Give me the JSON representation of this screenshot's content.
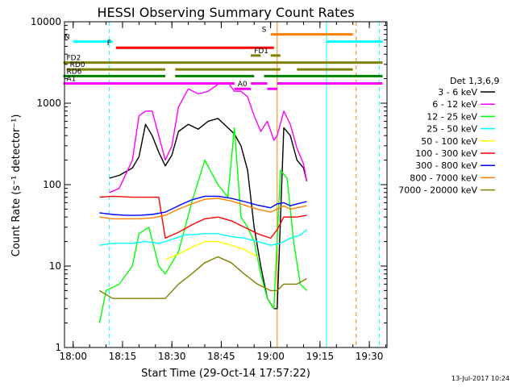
{
  "chart_data": {
    "type": "line",
    "title": "HESSI Observing Summary Count Rates",
    "xlabel": "Start Time (29-Oct-14 17:57:22)",
    "ylabel": "Count Rate (s⁻¹ detector⁻¹)",
    "y_scale": "log",
    "ylim": [
      1,
      10000
    ],
    "xlim_minutes_after_start": [
      0,
      98
    ],
    "x_ticks": [
      "18:00",
      "18:15",
      "18:30",
      "18:45",
      "19:00",
      "19:15",
      "19:30"
    ],
    "y_ticks": [
      "1",
      "10",
      "100",
      "1000",
      "10000"
    ],
    "footer": "13-Jul-2017 10:24",
    "legend": {
      "title": "Det 1,3,6,9",
      "placement": "right",
      "entries": [
        {
          "label": "3 - 6 keV",
          "color": "#000000"
        },
        {
          "label": "6 - 12 keV",
          "color": "#ff00ff"
        },
        {
          "label": "12 - 25 keV",
          "color": "#00ff00"
        },
        {
          "label": "25 - 50 keV",
          "color": "#00ffff"
        },
        {
          "label": "50 - 100 keV",
          "color": "#ffff00"
        },
        {
          "label": "100 - 300 keV",
          "color": "#ff0000"
        },
        {
          "label": "300 - 800 keV",
          "color": "#0000ff"
        },
        {
          "label": "800 - 7000 keV",
          "color": "#ff8000"
        },
        {
          "label": "7000 - 20000 keV",
          "color": "#808000"
        }
      ]
    },
    "flag_bars": [
      {
        "label": "N",
        "color": "#00ffff",
        "y": 5700,
        "segments": [
          [
            "18:00",
            "18:12"
          ],
          [
            "19:17",
            "19:34"
          ]
        ]
      },
      {
        "label": "F",
        "color": "#ff0000",
        "y": 4800,
        "segments": [
          [
            "18:13",
            "19:01"
          ]
        ]
      },
      {
        "label": "S",
        "color": "#ff8000",
        "y": 7000,
        "segments": [
          [
            "19:00",
            "19:25"
          ]
        ]
      },
      {
        "label": "FD1",
        "color": "#808000",
        "y": 3850,
        "segments": [
          [
            "18:54",
            "18:57"
          ],
          [
            "19:00",
            "19:03"
          ]
        ]
      },
      {
        "label": "FD2",
        "color": "#808000",
        "y": 3150,
        "segments": [
          [
            "17:57",
            "19:34"
          ]
        ]
      },
      {
        "label": "RD0",
        "color": "#808000",
        "y": 2600,
        "segments": [
          [
            "17:58",
            "18:28"
          ],
          [
            "18:31",
            "19:03"
          ],
          [
            "19:08",
            "19:25"
          ]
        ]
      },
      {
        "label": "RD6",
        "color": "#008000",
        "y": 2150,
        "segments": [
          [
            "17:57",
            "18:28"
          ],
          [
            "18:31",
            "18:55"
          ],
          [
            "18:58",
            "19:25"
          ],
          [
            "19:25",
            "19:34"
          ]
        ]
      },
      {
        "label": "A1",
        "color": "#ff00ff",
        "y": 1750,
        "segments": [
          [
            "17:57",
            "18:49"
          ],
          [
            "18:54",
            "18:59"
          ],
          [
            "19:02",
            "19:34"
          ]
        ]
      },
      {
        "label": "A0",
        "color": "#ff00ff",
        "y": 1500,
        "segments": [
          [
            "18:49",
            "18:54"
          ],
          [
            "18:59",
            "19:02"
          ]
        ]
      }
    ],
    "vertical_lines": [
      {
        "time": "17:57:22",
        "color": "#00ffff",
        "style": "solid"
      },
      {
        "time": "18:11",
        "color": "#00ffff",
        "style": "dashed"
      },
      {
        "time": "19:17",
        "color": "#00ffff",
        "style": "solid"
      },
      {
        "time": "19:33",
        "color": "#00ffff",
        "style": "dashed"
      },
      {
        "time": "19:02",
        "color": "#ff8000",
        "style": "solid"
      },
      {
        "time": "19:26",
        "color": "#ff8000",
        "style": "dashed"
      }
    ],
    "series": [
      {
        "name": "3 - 6 keV",
        "color": "#000000",
        "x": [
          "18:11",
          "18:14",
          "18:18",
          "18:20",
          "18:22",
          "18:24",
          "18:26",
          "18:28",
          "18:30",
          "18:32",
          "18:35",
          "18:38",
          "18:41",
          "18:44",
          "18:47",
          "18:49",
          "18:51",
          "18:53",
          "18:55",
          "18:57",
          "18:59",
          "19:01",
          "19:02",
          "19:04",
          "19:06",
          "19:08",
          "19:10",
          "19:11"
        ],
        "y": [
          120,
          130,
          160,
          220,
          550,
          400,
          250,
          170,
          230,
          450,
          550,
          480,
          600,
          650,
          500,
          420,
          300,
          150,
          30,
          10,
          4,
          3,
          3,
          500,
          400,
          200,
          160,
          110
        ]
      },
      {
        "name": "6 - 12 keV",
        "color": "#ff00ff",
        "x": [
          "18:11",
          "18:14",
          "18:18",
          "18:20",
          "18:22",
          "18:24",
          "18:26",
          "18:28",
          "18:30",
          "18:32",
          "18:35",
          "18:38",
          "18:41",
          "18:44",
          "18:47",
          "18:49",
          "18:51",
          "18:53",
          "18:55",
          "18:57",
          "18:59",
          "19:01",
          "19:02",
          "19:04",
          "19:06",
          "19:08",
          "19:10",
          "19:11"
        ],
        "y": [
          80,
          90,
          200,
          700,
          800,
          800,
          400,
          200,
          300,
          900,
          1500,
          1300,
          1400,
          1700,
          1800,
          1400,
          1400,
          1200,
          700,
          450,
          600,
          350,
          400,
          800,
          550,
          280,
          180,
          110
        ]
      },
      {
        "name": "12 - 25 keV",
        "color": "#00ff00",
        "x": [
          "18:08",
          "18:10",
          "18:14",
          "18:18",
          "18:20",
          "18:23",
          "18:26",
          "18:28",
          "18:32",
          "18:36",
          "18:40",
          "18:44",
          "18:47",
          "18:49",
          "18:51",
          "18:53",
          "18:55",
          "18:57",
          "18:59",
          "19:01",
          "19:03",
          "19:05",
          "19:07",
          "19:09",
          "19:11"
        ],
        "y": [
          2,
          5,
          6,
          10,
          25,
          30,
          10,
          8,
          15,
          60,
          200,
          100,
          70,
          500,
          40,
          30,
          20,
          8,
          4,
          3,
          150,
          120,
          20,
          6,
          5
        ]
      },
      {
        "name": "25 - 50 keV",
        "color": "#00ffff",
        "x": [
          "18:08",
          "18:12",
          "18:18",
          "18:22",
          "18:26",
          "18:28",
          "18:34",
          "18:40",
          "18:44",
          "18:48",
          "18:52",
          "18:56",
          "19:00",
          "19:03",
          "19:06",
          "19:09",
          "19:11"
        ],
        "y": [
          18,
          19,
          19,
          20,
          19,
          20,
          24,
          25,
          25,
          23,
          22,
          20,
          18,
          19,
          22,
          24,
          28
        ]
      },
      {
        "name": "50 - 100 keV",
        "color": "#ffff00",
        "x": [
          "18:28",
          "18:32",
          "18:36",
          "18:40",
          "18:44",
          "18:48",
          "18:52",
          "18:56"
        ],
        "y": [
          12,
          14,
          17,
          20,
          20,
          18,
          16,
          13
        ]
      },
      {
        "name": "100 - 300 keV",
        "color": "#ff0000",
        "x": [
          "18:08",
          "18:12",
          "18:18",
          "18:22",
          "18:26",
          "18:28",
          "18:32",
          "18:36",
          "18:40",
          "18:44",
          "18:48",
          "18:52",
          "18:56",
          "19:00",
          "19:02",
          "19:04",
          "19:08",
          "19:11"
        ],
        "y": [
          70,
          72,
          70,
          70,
          70,
          22,
          26,
          32,
          38,
          40,
          36,
          30,
          25,
          22,
          28,
          40,
          40,
          42
        ]
      },
      {
        "name": "300 - 800 keV",
        "color": "#0000ff",
        "x": [
          "18:08",
          "18:12",
          "18:16",
          "18:20",
          "18:24",
          "18:28",
          "18:32",
          "18:36",
          "18:40",
          "18:44",
          "18:48",
          "18:52",
          "18:56",
          "19:00",
          "19:02",
          "19:04",
          "19:06",
          "19:08",
          "19:11"
        ],
        "y": [
          45,
          43,
          42,
          42,
          43,
          46,
          55,
          65,
          72,
          72,
          68,
          62,
          56,
          52,
          58,
          60,
          55,
          58,
          62
        ]
      },
      {
        "name": "800 - 7000 keV",
        "color": "#ff8000",
        "x": [
          "18:08",
          "18:12",
          "18:16",
          "18:20",
          "18:24",
          "18:28",
          "18:32",
          "18:36",
          "18:40",
          "18:44",
          "18:48",
          "18:52",
          "18:56",
          "19:00",
          "19:02",
          "19:04",
          "19:06",
          "19:08",
          "19:11"
        ],
        "y": [
          40,
          38,
          38,
          38,
          39,
          42,
          50,
          58,
          66,
          68,
          63,
          56,
          50,
          46,
          50,
          55,
          50,
          52,
          55
        ]
      },
      {
        "name": "7000 - 20000 keV",
        "color": "#808000",
        "x": [
          "18:08",
          "18:12",
          "18:18",
          "18:22",
          "18:26",
          "18:28",
          "18:32",
          "18:36",
          "18:40",
          "18:44",
          "18:48",
          "18:52",
          "18:56",
          "19:00",
          "19:02",
          "19:04",
          "19:08",
          "19:11"
        ],
        "y": [
          5,
          4,
          4,
          4,
          4,
          4,
          6,
          8,
          11,
          13,
          11,
          8,
          6,
          5,
          5,
          6,
          6,
          7
        ]
      }
    ]
  }
}
